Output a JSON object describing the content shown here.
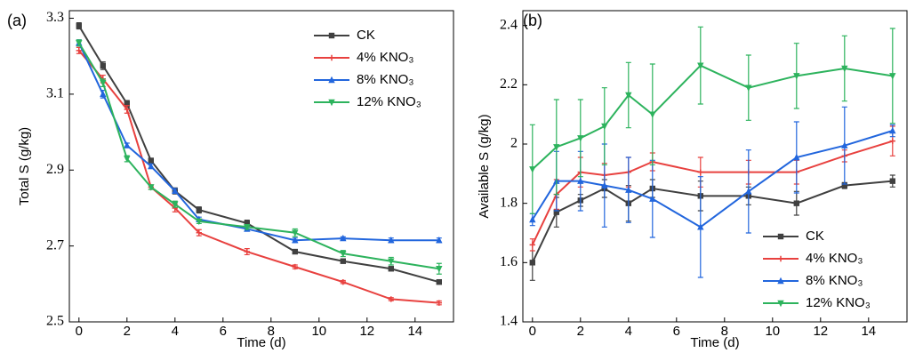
{
  "chart_data": [
    {
      "type": "line",
      "label": "(a)",
      "xlabel": "Time (d)",
      "ylabel": "Total S (g/kg)",
      "x": [
        0,
        1,
        2,
        3,
        4,
        5,
        7,
        9,
        11,
        13,
        15
      ],
      "xlim": [
        -0.4,
        15.6
      ],
      "xticks": [
        0,
        2,
        4,
        6,
        8,
        10,
        12,
        14
      ],
      "ylim": [
        2.5,
        3.32
      ],
      "yticks": [
        2.5,
        2.7,
        2.9,
        3.1,
        3.3
      ],
      "legend": "upper-right",
      "series": [
        {
          "name": "CK",
          "color": "#404040",
          "marker": "square",
          "values": [
            3.28,
            3.175,
            3.075,
            2.925,
            2.845,
            2.795,
            2.76,
            2.685,
            2.66,
            2.64,
            2.605
          ],
          "errors": [
            0.008,
            0.01,
            0.008,
            0.006,
            0.008,
            0.008,
            0.008,
            0.005,
            0.005,
            0.005,
            0.005
          ]
        },
        {
          "name": "4% KNO₃",
          "color": "#e8413f",
          "marker": "cross",
          "values": [
            3.215,
            3.14,
            3.06,
            2.855,
            2.8,
            2.735,
            2.685,
            2.645,
            2.605,
            2.56,
            2.55
          ],
          "errors": [
            0.008,
            0.01,
            0.01,
            0.006,
            0.01,
            0.008,
            0.008,
            0.005,
            0.004,
            0.004,
            0.005
          ]
        },
        {
          "name": "8% KNO₃",
          "color": "#2266dd",
          "marker": "triangle",
          "values": [
            3.235,
            3.1,
            2.965,
            2.91,
            2.845,
            2.77,
            2.745,
            2.715,
            2.72,
            2.715,
            2.715
          ],
          "errors": [
            0.008,
            0.01,
            0.006,
            0.006,
            0.006,
            0.006,
            0.006,
            0.006,
            0.004,
            0.006,
            0.006
          ]
        },
        {
          "name": "12% KNO₃",
          "color": "#2db35d",
          "marker": "triangle-down",
          "values": [
            3.235,
            3.13,
            2.93,
            2.855,
            2.81,
            2.765,
            2.75,
            2.735,
            2.68,
            2.66,
            2.64
          ],
          "errors": [
            0.008,
            0.01,
            0.008,
            0.006,
            0.008,
            0.006,
            0.006,
            0.01,
            0.008,
            0.01,
            0.014
          ]
        }
      ]
    },
    {
      "type": "line",
      "label": "(b)",
      "xlabel": "Time (d)",
      "ylabel": "Available S (g/kg)",
      "x": [
        0,
        1,
        2,
        3,
        4,
        5,
        7,
        9,
        11,
        13,
        15
      ],
      "xlim": [
        -0.4,
        15.6
      ],
      "xticks": [
        0,
        2,
        4,
        6,
        8,
        10,
        12,
        14
      ],
      "ylim": [
        1.4,
        2.45
      ],
      "yticks": [
        1.4,
        1.6,
        1.8,
        2.0,
        2.2,
        2.4
      ],
      "legend": "lower-right",
      "series": [
        {
          "name": "CK",
          "color": "#404040",
          "marker": "square",
          "values": [
            1.6,
            1.77,
            1.81,
            1.85,
            1.8,
            1.85,
            1.825,
            1.825,
            1.8,
            1.86,
            1.875
          ],
          "errors": [
            0.06,
            0.05,
            0.02,
            0.03,
            0.06,
            0.03,
            0.05,
            0.03,
            0.04,
            0.01,
            0.02
          ]
        },
        {
          "name": "4% KNO₃",
          "color": "#e8413f",
          "marker": "cross",
          "values": [
            1.66,
            1.83,
            1.905,
            1.895,
            1.905,
            1.94,
            1.905,
            1.905,
            1.905,
            1.96,
            2.01
          ],
          "errors": [
            0.02,
            0.05,
            0.05,
            0.04,
            0.05,
            0.03,
            0.05,
            0.04,
            0.04,
            0.02,
            0.05
          ]
        },
        {
          "name": "8% KNO₃",
          "color": "#2266dd",
          "marker": "triangle",
          "values": [
            1.745,
            1.875,
            1.875,
            1.86,
            1.845,
            1.815,
            1.72,
            1.84,
            1.955,
            1.995,
            2.045
          ],
          "errors": [
            0.02,
            0.1,
            0.1,
            0.14,
            0.11,
            0.13,
            0.17,
            0.14,
            0.12,
            0.13,
            0.02
          ]
        },
        {
          "name": "12% KNO₃",
          "color": "#2db35d",
          "marker": "triangle-down",
          "values": [
            1.915,
            1.99,
            2.02,
            2.06,
            2.165,
            2.1,
            2.265,
            2.19,
            2.23,
            2.255,
            2.23
          ],
          "errors": [
            0.15,
            0.16,
            0.13,
            0.13,
            0.11,
            0.17,
            0.13,
            0.11,
            0.11,
            0.11,
            0.16
          ]
        }
      ]
    }
  ]
}
